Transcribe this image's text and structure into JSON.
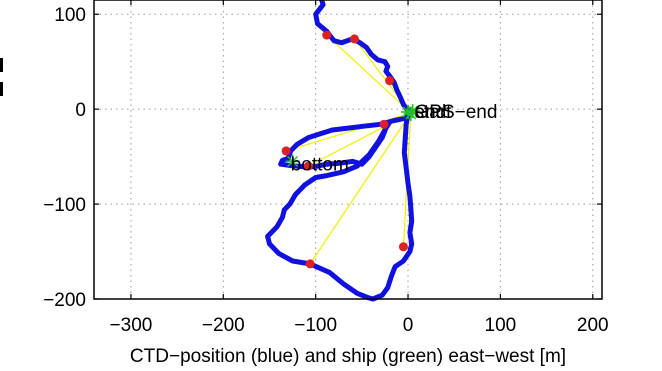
{
  "chart_data": {
    "type": "line",
    "title": "",
    "xlabel": "CTD−position (blue) and ship (green) east−west [m]",
    "ylabel": "",
    "xlim": [
      -340,
      210
    ],
    "ylim": [
      -200,
      115
    ],
    "x_ticks": [
      -300,
      -200,
      -100,
      0,
      100,
      200
    ],
    "x_tick_labels": [
      "−300",
      "−200",
      "−100",
      "0",
      "100",
      "200"
    ],
    "y_ticks": [
      -200,
      -100,
      0,
      100
    ],
    "y_tick_labels": [
      "−200",
      "−100",
      "0",
      "100"
    ],
    "grid": true,
    "colors": {
      "ctd_track": "#1010e0",
      "marker": "#e02020",
      "ray": "#f0f000",
      "ship": "#20c020",
      "axes": "#000000"
    },
    "series": [
      {
        "role": "ctd_track",
        "points": [
          [
            -95,
            120
          ],
          [
            -92,
            110
          ],
          [
            -100,
            100
          ],
          [
            -98,
            90
          ],
          [
            -88,
            82
          ],
          [
            -85,
            78
          ],
          [
            -80,
            72
          ],
          [
            -72,
            70
          ],
          [
            -60,
            74
          ],
          [
            -52,
            70
          ],
          [
            -45,
            65
          ],
          [
            -40,
            58
          ],
          [
            -33,
            52
          ],
          [
            -25,
            50
          ],
          [
            -22,
            45
          ],
          [
            -24,
            40
          ],
          [
            -20,
            35
          ],
          [
            -15,
            28
          ],
          [
            -12,
            20
          ],
          [
            -8,
            12
          ],
          [
            -5,
            5
          ],
          [
            0,
            -2
          ],
          [
            2,
            -5
          ],
          [
            -5,
            -10
          ],
          [
            -15,
            -12
          ],
          [
            -30,
            -16
          ],
          [
            -48,
            -18
          ],
          [
            -65,
            -20
          ],
          [
            -82,
            -22
          ],
          [
            -95,
            -26
          ],
          [
            -108,
            -30
          ],
          [
            -120,
            -37
          ],
          [
            -127,
            -44
          ],
          [
            -130,
            -52
          ],
          [
            -136,
            -54
          ],
          [
            -138,
            -58
          ],
          [
            -130,
            -59
          ],
          [
            -120,
            -60
          ],
          [
            -108,
            -61
          ],
          [
            -98,
            -60
          ],
          [
            -88,
            -58
          ],
          [
            -75,
            -57
          ],
          [
            -60,
            -55
          ],
          [
            -50,
            -58
          ],
          [
            -42,
            -50
          ],
          [
            -35,
            -40
          ],
          [
            -28,
            -30
          ],
          [
            -24,
            -20
          ],
          [
            -20,
            -14
          ],
          [
            -24,
            -20
          ],
          [
            -32,
            -34
          ],
          [
            -42,
            -48
          ],
          [
            -55,
            -60
          ],
          [
            -70,
            -66
          ],
          [
            -88,
            -70
          ],
          [
            -100,
            -72
          ],
          [
            -112,
            -80
          ],
          [
            -122,
            -90
          ],
          [
            -128,
            -100
          ],
          [
            -134,
            -106
          ],
          [
            -136,
            -114
          ],
          [
            -142,
            -124
          ],
          [
            -152,
            -134
          ],
          [
            -150,
            -142
          ],
          [
            -140,
            -152
          ],
          [
            -125,
            -160
          ],
          [
            -106,
            -163
          ],
          [
            -85,
            -172
          ],
          [
            -70,
            -184
          ],
          [
            -55,
            -194
          ],
          [
            -45,
            -198
          ],
          [
            -38,
            -200
          ],
          [
            -28,
            -196
          ],
          [
            -22,
            -188
          ],
          [
            -18,
            -176
          ],
          [
            -14,
            -166
          ],
          [
            -5,
            -160
          ],
          [
            2,
            -150
          ],
          [
            4,
            -142
          ],
          [
            2,
            -130
          ],
          [
            4,
            -118
          ],
          [
            3,
            -104
          ],
          [
            2,
            -92
          ],
          [
            0,
            -78
          ],
          [
            -2,
            -62
          ],
          [
            -4,
            -46
          ],
          [
            -3,
            -30
          ],
          [
            -2,
            -16
          ],
          [
            0,
            -5
          ],
          [
            2,
            0
          ]
        ]
      }
    ],
    "markers": [
      [
        -88,
        78
      ],
      [
        -58,
        74
      ],
      [
        -20,
        30
      ],
      [
        -26,
        -16
      ],
      [
        -132,
        -44
      ],
      [
        -108,
        -60
      ],
      [
        -106,
        -163
      ],
      [
        -5,
        -145
      ]
    ],
    "ship_points": [
      [
        0,
        -3
      ],
      [
        3,
        -5
      ],
      [
        5,
        -2
      ],
      [
        -125,
        -55
      ]
    ],
    "ray_origin": [
      3,
      -4
    ],
    "annotations": [
      {
        "text": "start",
        "x": 7,
        "y": -2
      },
      {
        "text": "GPS−end",
        "x": 7,
        "y": -2
      },
      {
        "text": "end",
        "x": 7,
        "y": -2
      },
      {
        "text": "bottom",
        "x": -127,
        "y": -57
      }
    ]
  }
}
